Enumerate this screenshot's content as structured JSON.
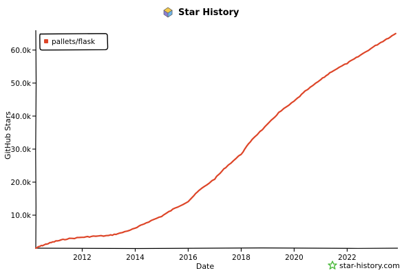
{
  "chart_data": {
    "type": "line",
    "title": "Star History",
    "xlabel": "Date",
    "ylabel": "GitHub Stars",
    "x_ticks": [
      "2012",
      "2014",
      "2016",
      "2018",
      "2020",
      "2022"
    ],
    "y_ticks": [
      "10.0k",
      "20.0k",
      "30.0k",
      "40.0k",
      "50.0k",
      "60.0k"
    ],
    "xlim": [
      "2010-04-01",
      "2023-12-01"
    ],
    "ylim": [
      0,
      66000
    ],
    "legend": "top-left",
    "grid": false,
    "series": [
      {
        "name": "pallets/flask",
        "color": "#dd4528",
        "points": [
          {
            "x": "2010-04-01",
            "y": 0
          },
          {
            "x": "2010-06-01",
            "y": 600
          },
          {
            "x": "2010-09-01",
            "y": 1300
          },
          {
            "x": "2011-01-01",
            "y": 2100
          },
          {
            "x": "2011-06-01",
            "y": 2800
          },
          {
            "x": "2012-01-01",
            "y": 3300
          },
          {
            "x": "2012-06-01",
            "y": 3600
          },
          {
            "x": "2013-01-01",
            "y": 3800
          },
          {
            "x": "2013-06-01",
            "y": 4500
          },
          {
            "x": "2014-01-01",
            "y": 6000
          },
          {
            "x": "2014-06-01",
            "y": 7700
          },
          {
            "x": "2015-01-01",
            "y": 9700
          },
          {
            "x": "2015-06-01",
            "y": 11700
          },
          {
            "x": "2016-01-01",
            "y": 14200
          },
          {
            "x": "2016-06-01",
            "y": 17500
          },
          {
            "x": "2017-01-01",
            "y": 21000
          },
          {
            "x": "2017-06-01",
            "y": 24500
          },
          {
            "x": "2018-01-01",
            "y": 28500
          },
          {
            "x": "2018-06-01",
            "y": 33000
          },
          {
            "x": "2019-01-01",
            "y": 37500
          },
          {
            "x": "2019-06-01",
            "y": 41000
          },
          {
            "x": "2020-01-01",
            "y": 44500
          },
          {
            "x": "2020-06-01",
            "y": 47500
          },
          {
            "x": "2021-01-01",
            "y": 51000
          },
          {
            "x": "2021-06-01",
            "y": 53500
          },
          {
            "x": "2022-01-01",
            "y": 56000
          },
          {
            "x": "2022-06-01",
            "y": 58000
          },
          {
            "x": "2023-01-01",
            "y": 61000
          },
          {
            "x": "2023-06-01",
            "y": 63000
          },
          {
            "x": "2023-11-01",
            "y": 65000
          }
        ]
      }
    ]
  },
  "branding": {
    "text": "star-history.com",
    "logo_icon": "star-history-logo-icon",
    "brand_icon": "green-star-icon",
    "brand_color": "#4cba3c"
  }
}
